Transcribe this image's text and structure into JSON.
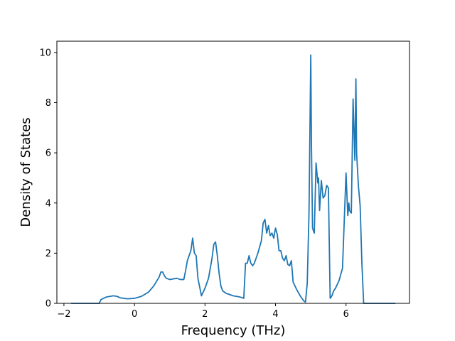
{
  "chart_data": {
    "type": "line",
    "title": "",
    "xlabel": "Frequency (THz)",
    "ylabel": "Density of States",
    "xlim": [
      -2.2,
      7.8
    ],
    "ylim": [
      0,
      10.45
    ],
    "xticks": [
      -2,
      0,
      2,
      4,
      6
    ],
    "yticks": [
      0,
      2,
      4,
      6,
      8,
      10
    ],
    "grid": false,
    "legend": "none",
    "series": [
      {
        "color": "#1f77b4",
        "x": [
          -1.8,
          -1.0,
          -0.95,
          -0.8,
          -0.6,
          -0.5,
          -0.4,
          -0.3,
          -0.2,
          0.0,
          0.2,
          0.4,
          0.55,
          0.7,
          0.75,
          0.8,
          0.85,
          0.9,
          1.0,
          1.2,
          1.3,
          1.4,
          1.45,
          1.5,
          1.6,
          1.65,
          1.7,
          1.75,
          1.8,
          1.9,
          2.0,
          2.1,
          2.2,
          2.25,
          2.3,
          2.35,
          2.4,
          2.45,
          2.5,
          2.6,
          2.8,
          3.0,
          3.1,
          3.15,
          3.2,
          3.25,
          3.3,
          3.35,
          3.4,
          3.5,
          3.6,
          3.65,
          3.7,
          3.75,
          3.8,
          3.85,
          3.9,
          3.95,
          4.0,
          4.05,
          4.1,
          4.15,
          4.2,
          4.25,
          4.3,
          4.35,
          4.4,
          4.45,
          4.5,
          4.6,
          4.7,
          4.8,
          4.85,
          4.9,
          4.95,
          5.0,
          5.02,
          5.05,
          5.1,
          5.15,
          5.2,
          5.22,
          5.25,
          5.3,
          5.35,
          5.4,
          5.45,
          5.5,
          5.55,
          5.6,
          5.65,
          5.7,
          5.8,
          5.9,
          6.0,
          6.05,
          6.08,
          6.1,
          6.15,
          6.2,
          6.25,
          6.28,
          6.3,
          6.35,
          6.4,
          6.45,
          6.5,
          6.55,
          6.6,
          6.65,
          7.4
        ],
        "values": [
          0.0,
          0.0,
          0.15,
          0.25,
          0.3,
          0.28,
          0.22,
          0.2,
          0.18,
          0.2,
          0.28,
          0.45,
          0.7,
          1.05,
          1.25,
          1.25,
          1.1,
          1.0,
          0.95,
          1.0,
          0.95,
          0.95,
          1.3,
          1.7,
          2.1,
          2.6,
          2.0,
          1.9,
          1.0,
          0.3,
          0.6,
          1.0,
          1.8,
          2.35,
          2.45,
          1.9,
          1.2,
          0.7,
          0.5,
          0.4,
          0.3,
          0.25,
          0.2,
          1.6,
          1.6,
          1.9,
          1.6,
          1.5,
          1.6,
          2.0,
          2.5,
          3.2,
          3.35,
          2.8,
          3.1,
          2.7,
          2.8,
          2.6,
          3.0,
          2.75,
          2.1,
          2.1,
          1.8,
          1.7,
          1.9,
          1.55,
          1.5,
          1.7,
          0.85,
          0.55,
          0.3,
          0.1,
          0.05,
          0.8,
          3.6,
          9.9,
          6.3,
          3.0,
          2.8,
          5.6,
          4.8,
          5.0,
          3.7,
          4.9,
          4.2,
          4.3,
          4.7,
          4.6,
          0.2,
          0.3,
          0.5,
          0.6,
          0.9,
          1.4,
          5.2,
          3.5,
          4.0,
          3.7,
          3.6,
          8.15,
          5.7,
          8.95,
          6.0,
          4.7,
          3.9,
          1.6,
          0.0,
          0.0,
          0.0,
          0.0,
          0.0
        ]
      }
    ]
  }
}
